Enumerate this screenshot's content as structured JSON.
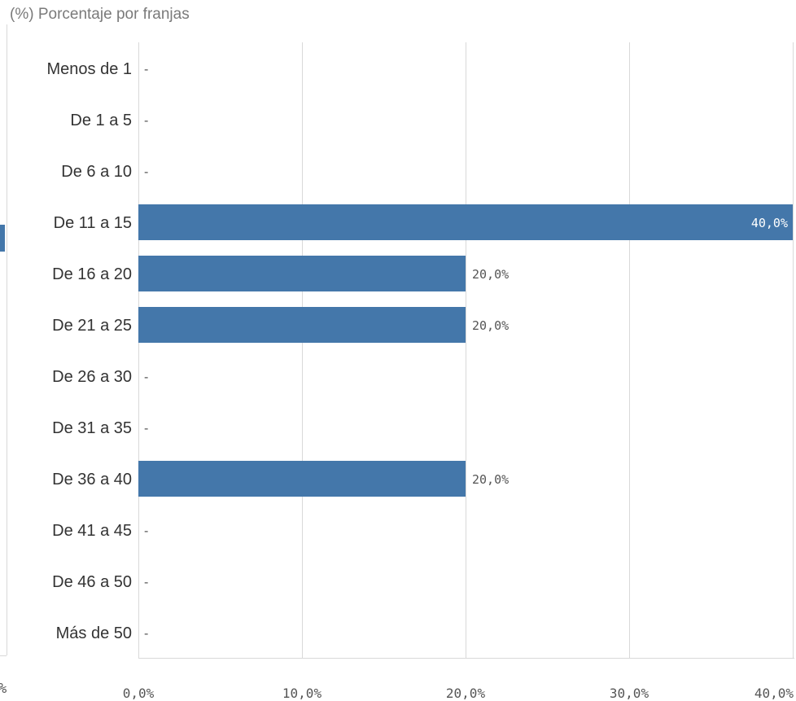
{
  "chart_data": {
    "type": "bar",
    "orientation": "horizontal",
    "title": "(%) Porcentaje por franjas",
    "categories": [
      "Menos de 1",
      "De 1 a 5",
      "De 6 a 10",
      "De 11 a 15",
      "De 16 a 20",
      "De 21 a 25",
      "De 26 a 30",
      "De 31 a 35",
      "De 36 a 40",
      "De 41 a 45",
      "De 46 a 50",
      "Más de 50"
    ],
    "values": [
      null,
      null,
      null,
      40.0,
      20.0,
      20.0,
      null,
      null,
      20.0,
      null,
      null,
      null
    ],
    "value_labels": [
      "-",
      "-",
      "-",
      "40,0%",
      "20,0%",
      "20,0%",
      "-",
      "-",
      "20,0%",
      "-",
      "-",
      "-"
    ],
    "xlim": [
      0,
      40
    ],
    "xticks": [
      0,
      10,
      20,
      30,
      40
    ],
    "xtick_labels": [
      "0,0%",
      "10,0%",
      "20,0%",
      "30,0%",
      "40,0%"
    ],
    "grid": true,
    "bar_color": "#4477aa",
    "gridline_color": "#d9d9d9"
  },
  "edge": {
    "left_label": "%"
  }
}
